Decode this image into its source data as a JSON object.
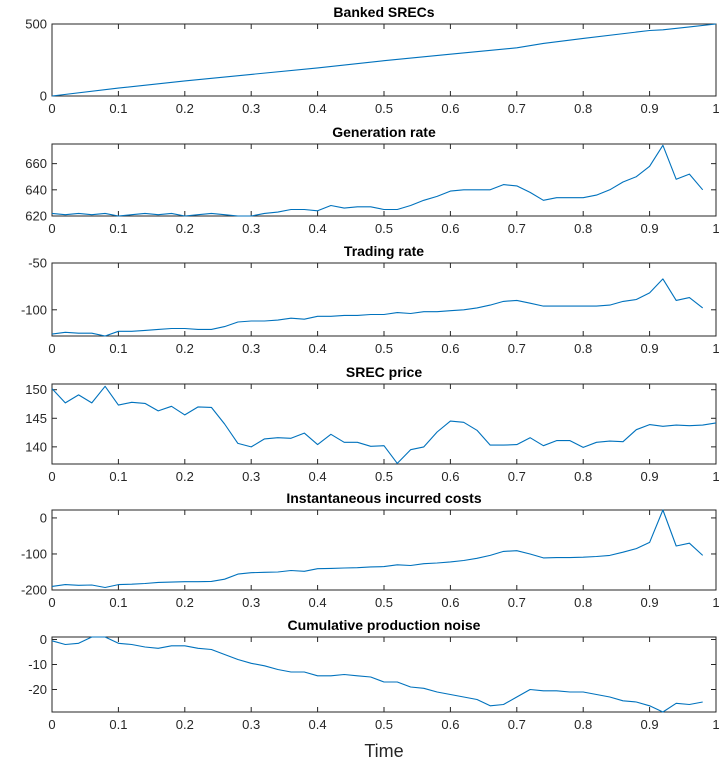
{
  "colors": {
    "line": "#0072BD",
    "axis": "#262626",
    "background": "#ffffff"
  },
  "chart_data": [
    {
      "type": "line",
      "title": "Banked SRECs",
      "xlabel": "",
      "xlim": [
        0,
        1
      ],
      "ylim": [
        0,
        500
      ],
      "yticks": [
        0,
        500
      ],
      "xticks": [
        0,
        0.1,
        0.2,
        0.3,
        0.4,
        0.5,
        0.6,
        0.7,
        0.8,
        0.9,
        1
      ],
      "series": [
        {
          "x": [
            0,
            0.1,
            0.2,
            0.3,
            0.4,
            0.5,
            0.6,
            0.7,
            0.74,
            0.8,
            0.9,
            0.92,
            0.96,
            1
          ],
          "y": [
            0,
            55,
            105,
            150,
            195,
            245,
            290,
            335,
            365,
            400,
            455,
            460,
            480,
            500
          ]
        }
      ]
    },
    {
      "type": "line",
      "title": "Generation rate",
      "xlabel": "",
      "xlim": [
        0,
        1
      ],
      "ylim": [
        620,
        675
      ],
      "yticks": [
        620,
        640,
        660
      ],
      "xticks": [
        0,
        0.1,
        0.2,
        0.3,
        0.4,
        0.5,
        0.6,
        0.7,
        0.8,
        0.9,
        1
      ],
      "series": [
        {
          "x": [
            0,
            0.02,
            0.04,
            0.06,
            0.08,
            0.1,
            0.12,
            0.14,
            0.16,
            0.18,
            0.2,
            0.22,
            0.24,
            0.26,
            0.28,
            0.3,
            0.32,
            0.34,
            0.36,
            0.38,
            0.4,
            0.42,
            0.44,
            0.46,
            0.48,
            0.5,
            0.52,
            0.54,
            0.56,
            0.58,
            0.6,
            0.62,
            0.64,
            0.66,
            0.68,
            0.7,
            0.72,
            0.74,
            0.76,
            0.78,
            0.8,
            0.82,
            0.84,
            0.86,
            0.88,
            0.9,
            0.92,
            0.94,
            0.96,
            0.98
          ],
          "y": [
            622,
            621,
            622,
            621,
            622,
            620,
            621,
            622,
            621,
            622,
            620,
            621,
            622,
            621,
            620,
            620,
            622,
            623,
            625,
            625,
            624,
            628,
            626,
            627,
            627,
            625,
            625,
            628,
            632,
            635,
            639,
            640,
            640,
            640,
            644,
            643,
            638,
            632,
            634,
            634,
            634,
            636,
            640,
            646,
            650,
            658,
            674,
            648,
            652,
            640
          ]
        }
      ]
    },
    {
      "type": "line",
      "title": "Trading rate",
      "xlabel": "",
      "xlim": [
        0,
        1
      ],
      "ylim": [
        -128,
        -50
      ],
      "yticks": [
        -100,
        -50
      ],
      "xticks": [
        0,
        0.1,
        0.2,
        0.3,
        0.4,
        0.5,
        0.6,
        0.7,
        0.8,
        0.9,
        1
      ],
      "series": [
        {
          "x": [
            0,
            0.02,
            0.04,
            0.06,
            0.08,
            0.1,
            0.12,
            0.14,
            0.16,
            0.18,
            0.2,
            0.22,
            0.24,
            0.26,
            0.28,
            0.3,
            0.32,
            0.34,
            0.36,
            0.38,
            0.4,
            0.42,
            0.44,
            0.46,
            0.48,
            0.5,
            0.52,
            0.54,
            0.56,
            0.58,
            0.6,
            0.62,
            0.64,
            0.66,
            0.68,
            0.7,
            0.72,
            0.74,
            0.76,
            0.78,
            0.8,
            0.82,
            0.84,
            0.86,
            0.88,
            0.9,
            0.92,
            0.94,
            0.96,
            0.98
          ],
          "y": [
            -126,
            -124,
            -125,
            -125,
            -128,
            -123,
            -123,
            -122,
            -121,
            -120,
            -120,
            -121,
            -121,
            -118,
            -113,
            -112,
            -112,
            -111,
            -109,
            -110,
            -107,
            -107,
            -106,
            -106,
            -105,
            -105,
            -103,
            -104,
            -102,
            -102,
            -101,
            -100,
            -98,
            -95,
            -91,
            -90,
            -93,
            -96,
            -96,
            -96,
            -96,
            -96,
            -95,
            -91,
            -89,
            -82,
            -67,
            -90,
            -87,
            -98
          ]
        }
      ]
    },
    {
      "type": "line",
      "title": "SREC price",
      "xlabel": "",
      "xlim": [
        0,
        1
      ],
      "ylim": [
        137,
        151
      ],
      "yticks": [
        140,
        145,
        150
      ],
      "xticks": [
        0,
        0.1,
        0.2,
        0.3,
        0.4,
        0.5,
        0.6,
        0.7,
        0.8,
        0.9,
        1
      ],
      "series": [
        {
          "x": [
            0,
            0.02,
            0.04,
            0.06,
            0.08,
            0.1,
            0.12,
            0.14,
            0.16,
            0.18,
            0.2,
            0.22,
            0.24,
            0.26,
            0.28,
            0.3,
            0.32,
            0.34,
            0.36,
            0.38,
            0.4,
            0.42,
            0.44,
            0.46,
            0.48,
            0.5,
            0.52,
            0.54,
            0.56,
            0.58,
            0.6,
            0.62,
            0.64,
            0.66,
            0.68,
            0.7,
            0.72,
            0.74,
            0.76,
            0.78,
            0.8,
            0.82,
            0.84,
            0.86,
            0.88,
            0.9,
            0.92,
            0.94,
            0.96,
            0.98,
            1
          ],
          "y": [
            150.2,
            147.7,
            149.1,
            147.7,
            150.6,
            147.3,
            147.8,
            147.6,
            146.3,
            147.1,
            145.6,
            147,
            146.9,
            144,
            140.6,
            140,
            141.4,
            141.6,
            141.5,
            142.4,
            140.4,
            142.2,
            140.8,
            140.8,
            140.1,
            140.2,
            137.1,
            139.5,
            140,
            142.6,
            144.5,
            144.3,
            142.9,
            140.3,
            140.3,
            140.4,
            141.6,
            140.2,
            141.1,
            141.1,
            139.9,
            140.8,
            141,
            140.9,
            143,
            143.9,
            143.6,
            143.8,
            143.7,
            143.8,
            144.2
          ]
        }
      ]
    },
    {
      "type": "line",
      "title": "Instantaneous incurred costs",
      "xlabel": "",
      "xlim": [
        0,
        1
      ],
      "ylim": [
        -200,
        22
      ],
      "yticks": [
        -200,
        -100,
        0
      ],
      "xticks": [
        0,
        0.1,
        0.2,
        0.3,
        0.4,
        0.5,
        0.6,
        0.7,
        0.8,
        0.9,
        1
      ],
      "series": [
        {
          "x": [
            0,
            0.02,
            0.04,
            0.06,
            0.08,
            0.1,
            0.12,
            0.14,
            0.16,
            0.18,
            0.2,
            0.22,
            0.24,
            0.26,
            0.28,
            0.3,
            0.32,
            0.34,
            0.36,
            0.38,
            0.4,
            0.42,
            0.44,
            0.46,
            0.48,
            0.5,
            0.52,
            0.54,
            0.56,
            0.58,
            0.6,
            0.62,
            0.64,
            0.66,
            0.68,
            0.7,
            0.72,
            0.74,
            0.76,
            0.78,
            0.8,
            0.82,
            0.84,
            0.86,
            0.88,
            0.9,
            0.92,
            0.94,
            0.96,
            0.98
          ],
          "y": [
            -190,
            -185,
            -187,
            -186,
            -193,
            -185,
            -184,
            -182,
            -179,
            -178,
            -177,
            -177,
            -176,
            -170,
            -156,
            -152,
            -151,
            -150,
            -146,
            -148,
            -141,
            -140,
            -139,
            -138,
            -136,
            -135,
            -130,
            -132,
            -127,
            -125,
            -122,
            -118,
            -112,
            -104,
            -93,
            -91,
            -100,
            -111,
            -110,
            -110,
            -109,
            -107,
            -104,
            -95,
            -85,
            -68,
            22,
            -78,
            -70,
            -104
          ]
        }
      ]
    },
    {
      "type": "line",
      "title": "Cumulative production noise",
      "xlabel": "Time",
      "xlim": [
        0,
        1
      ],
      "ylim": [
        -29,
        1
      ],
      "yticks": [
        -20,
        -10,
        0
      ],
      "xticks": [
        0,
        0.1,
        0.2,
        0.3,
        0.4,
        0.5,
        0.6,
        0.7,
        0.8,
        0.9,
        1
      ],
      "series": [
        {
          "x": [
            0,
            0.02,
            0.04,
            0.06,
            0.08,
            0.1,
            0.12,
            0.14,
            0.16,
            0.18,
            0.2,
            0.22,
            0.24,
            0.26,
            0.28,
            0.3,
            0.32,
            0.34,
            0.36,
            0.38,
            0.4,
            0.42,
            0.44,
            0.46,
            0.48,
            0.5,
            0.52,
            0.54,
            0.56,
            0.58,
            0.6,
            0.62,
            0.64,
            0.66,
            0.68,
            0.7,
            0.72,
            0.74,
            0.76,
            0.78,
            0.8,
            0.82,
            0.84,
            0.86,
            0.88,
            0.9,
            0.92,
            0.94,
            0.96,
            0.98
          ],
          "y": [
            -0.5,
            -2,
            -1.5,
            1,
            1,
            -1.5,
            -2,
            -3,
            -3.5,
            -2.5,
            -2.5,
            -3.5,
            -4,
            -6,
            -8,
            -9.5,
            -10.5,
            -12,
            -13,
            -13,
            -14.5,
            -14.5,
            -14,
            -14.5,
            -15,
            -17,
            -17,
            -19,
            -19.5,
            -21,
            -22,
            -23,
            -24,
            -26.5,
            -26,
            -23,
            -20,
            -20.5,
            -20.5,
            -21,
            -21,
            -22,
            -23,
            -24.5,
            -25,
            -26.5,
            -29,
            -25.5,
            -26,
            -25
          ]
        }
      ]
    }
  ]
}
